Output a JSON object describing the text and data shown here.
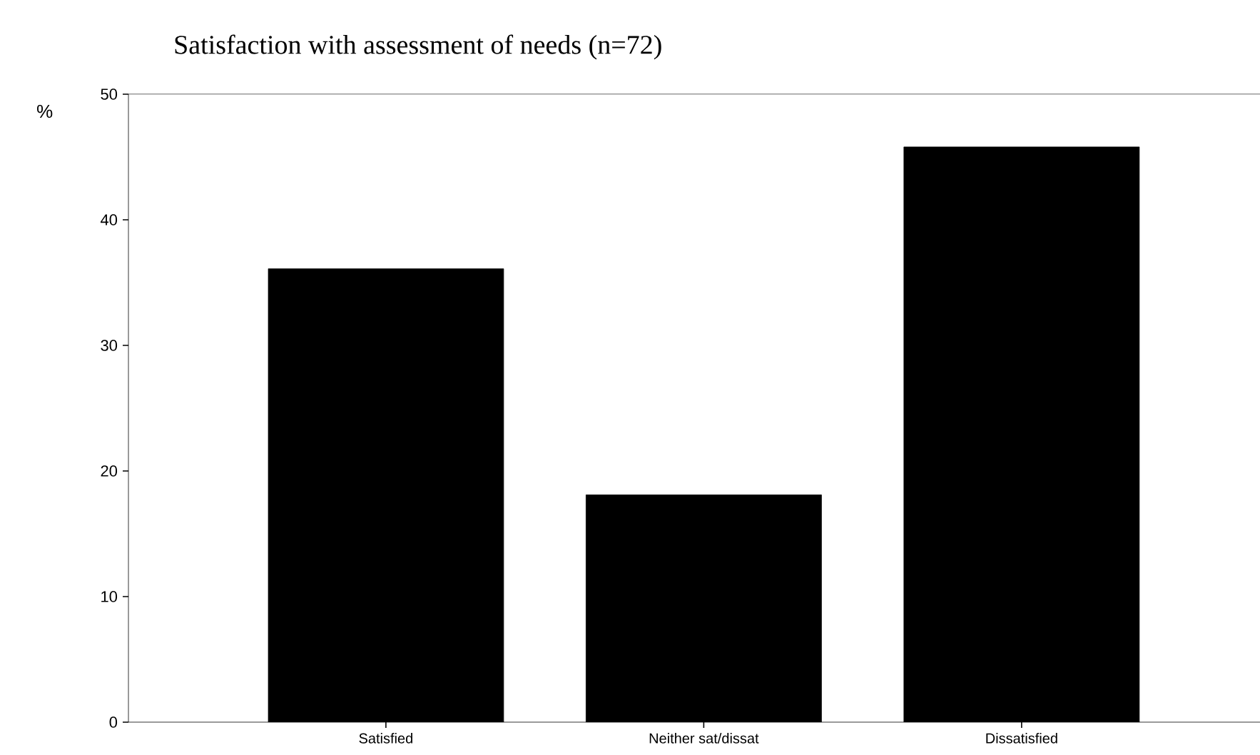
{
  "chart_data": {
    "type": "bar",
    "title": "Satisfaction with assessment of needs (n=72)",
    "ylabel": "%",
    "categories": [
      "Satisfied",
      "Neither sat/dissat",
      "Dissatisfied"
    ],
    "values": [
      36.1,
      18.1,
      45.8
    ],
    "color": "#000000",
    "ylim": [
      0,
      50
    ],
    "yticks": [
      0,
      10,
      20,
      30,
      40,
      50
    ],
    "grid": false
  }
}
